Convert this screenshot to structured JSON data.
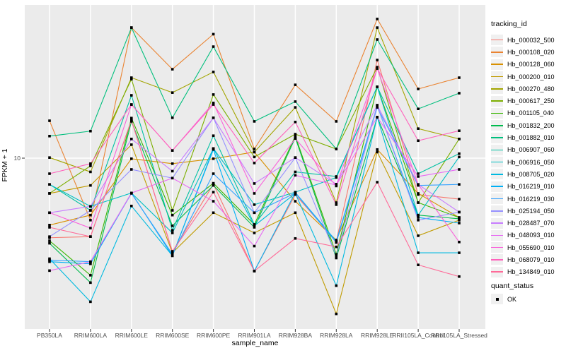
{
  "legend_tracking": {
    "title": "tracking_id"
  },
  "legend_quant": {
    "title": "quant_status",
    "entries": [
      {
        "label": "OK",
        "marker": "black-square"
      }
    ]
  },
  "styles": {
    "panel_bg": "#EBEBEB",
    "grid_color": "#FFFFFF",
    "tick_color": "#333333",
    "tick_label_color": "#4D4D4D",
    "point_color": "#000000",
    "legend_key_bg": "#F0F0F0"
  },
  "chart_data": {
    "type": "line",
    "title": "",
    "xlabel": "sample_name",
    "ylabel": "FPKM + 1",
    "y_scale": "log10",
    "y_tick_values": [
      10
    ],
    "y_tick_labels": [
      "10"
    ],
    "ylim": [
      0.55,
      140
    ],
    "grid": true,
    "legend_position": "right",
    "point_marker": "filled-square",
    "categories": [
      "PB350LA",
      "RRIM600LA",
      "RRIM600LE",
      "RRIM600SE",
      "RRIM600PE",
      "RRIM901LA",
      "RRIM928BA",
      "RRIM928LA",
      "RRIM928LE",
      "RRII105LA_Control",
      "RRII105LA_Stressed"
    ],
    "series": [
      {
        "name": "Hb_000032_500",
        "color": "#F8766D",
        "quant_status": "OK",
        "values": [
          2.55,
          2.6,
          19.2,
          2.0,
          6.4,
          1.44,
          5.35,
          2.4,
          53.9,
          5.35,
          4.95
        ]
      },
      {
        "name": "Hb_000108_020",
        "color": "#EA8331",
        "quant_status": "OK",
        "values": [
          19.0,
          3.45,
          94,
          46,
          84,
          11.7,
          35.2,
          18.8,
          109,
          32.8,
          39.8
        ]
      },
      {
        "name": "Hb_000128_060",
        "color": "#D89000",
        "quant_status": "OK",
        "values": [
          3.17,
          3.76,
          9.9,
          9.1,
          9.9,
          11.1,
          4.77,
          2.45,
          11.6,
          5.46,
          3.61
        ]
      },
      {
        "name": "Hb_000200_010",
        "color": "#C09B00",
        "quant_status": "OK",
        "values": [
          5.46,
          6.26,
          12.6,
          1.97,
          3.92,
          2.77,
          3.92,
          0.69,
          11.1,
          2.64,
          3.45
        ]
      },
      {
        "name": "Hb_000270_480",
        "color": "#A3A500",
        "quant_status": "OK",
        "values": [
          10.1,
          7.9,
          39.8,
          30.8,
          43.9,
          11.1,
          23.9,
          4.66,
          94,
          16.6,
          13.9
        ]
      },
      {
        "name": "Hb_000617_250",
        "color": "#7CAE00",
        "quant_status": "OK",
        "values": [
          5.46,
          8.75,
          38.8,
          4.08,
          29.8,
          10.2,
          15.1,
          11.7,
          47.7,
          4.66,
          13.9
        ]
      },
      {
        "name": "Hb_001105_040",
        "color": "#39B600",
        "quant_status": "OK",
        "values": [
          2.42,
          1.34,
          19.9,
          3.76,
          6.5,
          3.2,
          14.6,
          1.92,
          34,
          4.66,
          3.61
        ]
      },
      {
        "name": "Hb_001832_200",
        "color": "#00BB4E",
        "quant_status": "OK",
        "values": [
          2.32,
          1.18,
          18.8,
          3.13,
          6.26,
          3.05,
          14.2,
          1.8,
          20.2,
          3.76,
          3.53
        ]
      },
      {
        "name": "Hb_001882_010",
        "color": "#00BF7D",
        "quant_status": "OK",
        "values": [
          14.6,
          15.9,
          94,
          20,
          67.8,
          18.8,
          26.4,
          11.7,
          76.6,
          23.3,
          30.5
        ]
      },
      {
        "name": "Hb_006907_060",
        "color": "#00C1A3",
        "quant_status": "OK",
        "values": [
          6.37,
          4.08,
          29.4,
          2.9,
          14.7,
          3.2,
          7.9,
          7.3,
          34,
          7.66,
          10.8
        ]
      },
      {
        "name": "Hb_006916_050",
        "color": "#00BFC4",
        "quant_status": "OK",
        "values": [
          6.37,
          4.37,
          5.5,
          2.77,
          11.8,
          4.5,
          5.58,
          7.17,
          34,
          3.76,
          10.2
        ]
      },
      {
        "name": "Hb_008705_020",
        "color": "#00BAE0",
        "quant_status": "OK",
        "values": [
          1.78,
          0.85,
          4.4,
          1.87,
          11.8,
          3.13,
          5.46,
          1.12,
          20.2,
          1.97,
          1.97
        ]
      },
      {
        "name": "Hb_016219_010",
        "color": "#00B0F6",
        "quant_status": "OK",
        "values": [
          1.69,
          1.63,
          5.5,
          1.87,
          11.6,
          1.44,
          5.55,
          2.4,
          24.5,
          3.61,
          3.28
        ]
      },
      {
        "name": "Hb_016219_030",
        "color": "#35A2FF",
        "quant_status": "OK",
        "values": [
          1.74,
          1.69,
          5.46,
          1.92,
          7.66,
          3.92,
          5.5,
          2.35,
          23.9,
          6.26,
          6.37
        ]
      },
      {
        "name": "Hb_025194_050",
        "color": "#9590FF",
        "quant_status": "OK",
        "values": [
          2.6,
          4.08,
          8.24,
          7.1,
          20,
          3.92,
          10.1,
          1.87,
          24.8,
          3.45,
          3.96
        ]
      },
      {
        "name": "Hb_028487_070",
        "color": "#C77CFF",
        "quant_status": "OK",
        "values": [
          3.92,
          4.37,
          13.9,
          8.0,
          20,
          6.47,
          10.1,
          6.4,
          24.8,
          6.37,
          3.96
        ]
      },
      {
        "name": "Hb_048093_010",
        "color": "#E76BF3",
        "quant_status": "OK",
        "values": [
          1.45,
          1.69,
          5.5,
          7.1,
          4.77,
          2.21,
          7.45,
          6.3,
          20.2,
          7.3,
          8.24
        ]
      },
      {
        "name": "Hb_055690_010",
        "color": "#FA62DB",
        "quant_status": "OK",
        "values": [
          3.92,
          3.01,
          25.1,
          11.4,
          25.8,
          5.46,
          14.0,
          6.2,
          46.6,
          6.37,
          2.37
        ]
      },
      {
        "name": "Hb_068079_010",
        "color": "#FF62BC",
        "quant_status": "OK",
        "values": [
          7.66,
          9.1,
          25.1,
          11.4,
          25.1,
          9.2,
          18.6,
          4.5,
          46.6,
          13.5,
          16.0
        ]
      },
      {
        "name": "Hb_134849_010",
        "color": "#FF6A98",
        "quant_status": "OK",
        "values": [
          3.05,
          2.6,
          19.2,
          2.02,
          5.58,
          1.44,
          2.52,
          2.18,
          6.62,
          1.6,
          1.31
        ]
      }
    ]
  }
}
